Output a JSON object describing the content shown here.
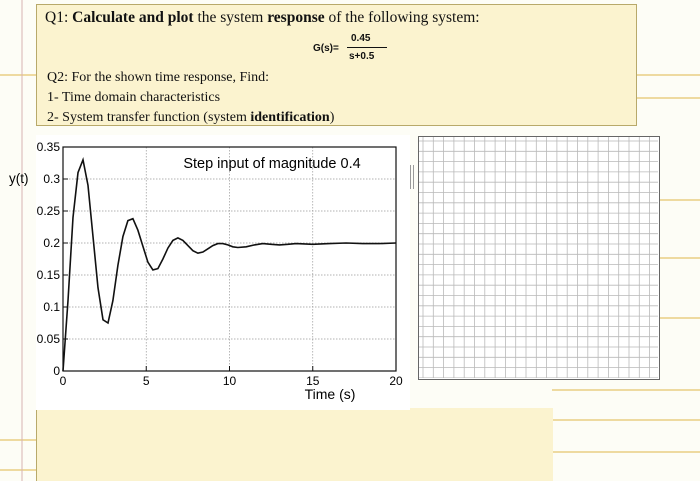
{
  "question1": {
    "num": "Q1:",
    "bold1": "Calculate and plot",
    "text1": "the system",
    "bold2": "response",
    "text2": "of the following system:"
  },
  "transfer_function": {
    "lhs": "G(s)=",
    "numerator": "0.45",
    "denominator": "s+0.5"
  },
  "question2": {
    "line1": "Q2: For the shown time response, Find:",
    "item1": "1-  Time domain characteristics",
    "item2_prefix": "2-  System transfer function (system",
    "item2_bold": "identification",
    "item2_suffix": ")"
  },
  "chart_data": {
    "type": "line",
    "title": "Step input of magnitude 0.4",
    "xlabel": "Time (s)",
    "ylabel": "y(t)",
    "xlim": [
      0,
      20
    ],
    "ylim": [
      0,
      0.35
    ],
    "xticks": [
      0,
      5,
      10,
      15,
      20
    ],
    "yticks": [
      0,
      0.05,
      0.1,
      0.15,
      0.2,
      0.25,
      0.3,
      0.35
    ],
    "ytick_labels": [
      "0",
      "0.05",
      "0.1",
      "0.15",
      "0.2",
      "0.25",
      "0.3",
      "0.35"
    ],
    "xtick_labels": [
      "0",
      "5",
      "10",
      "15",
      "20"
    ],
    "grid": true,
    "series": [
      {
        "x": [
          0,
          0.3,
          0.6,
          0.9,
          1.2,
          1.5,
          1.8,
          2.1,
          2.4,
          2.7,
          3.0,
          3.3,
          3.6,
          3.9,
          4.2,
          4.5,
          4.8,
          5.1,
          5.4,
          5.7,
          6.0,
          6.3,
          6.6,
          6.9,
          7.2,
          7.5,
          7.8,
          8.1,
          8.4,
          8.7,
          9.0,
          9.3,
          9.6,
          9.9,
          10.2,
          10.5,
          11,
          11.5,
          12,
          12.5,
          13,
          13.5,
          14,
          15,
          16,
          17,
          18,
          19,
          20
        ],
        "y": [
          0,
          0.11,
          0.24,
          0.31,
          0.33,
          0.29,
          0.21,
          0.13,
          0.08,
          0.075,
          0.11,
          0.165,
          0.21,
          0.235,
          0.238,
          0.22,
          0.195,
          0.17,
          0.158,
          0.16,
          0.175,
          0.192,
          0.204,
          0.208,
          0.204,
          0.196,
          0.188,
          0.184,
          0.186,
          0.191,
          0.196,
          0.199,
          0.199,
          0.197,
          0.194,
          0.193,
          0.194,
          0.197,
          0.199,
          0.198,
          0.197,
          0.198,
          0.199,
          0.198,
          0.199,
          0.2,
          0.199,
          0.199,
          0.2
        ]
      }
    ]
  }
}
